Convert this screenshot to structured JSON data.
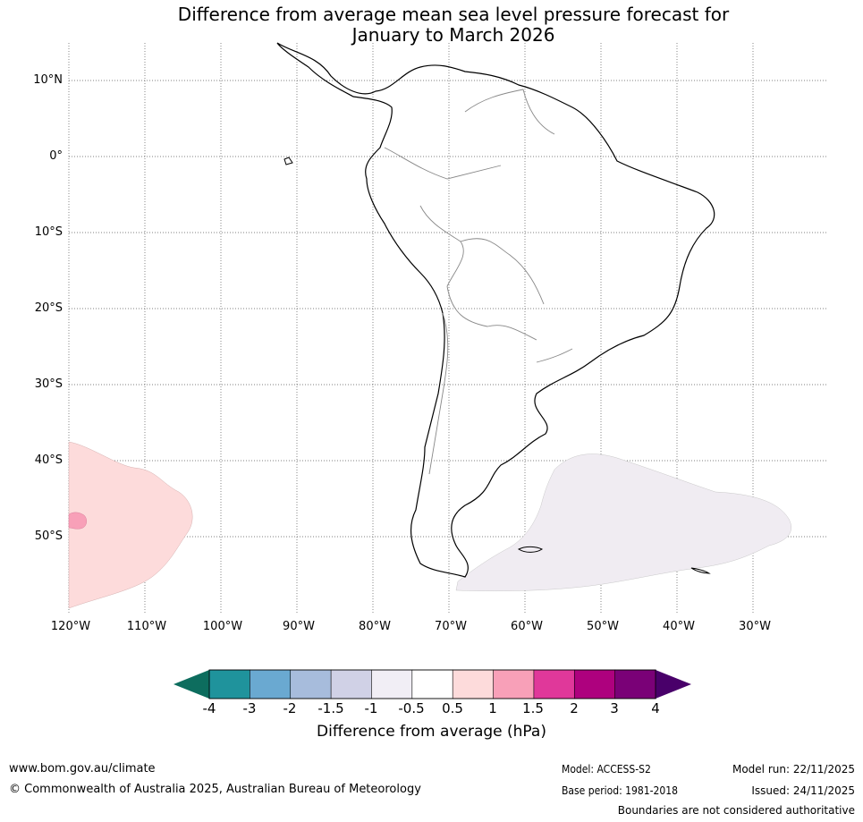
{
  "title": {
    "line1": "Difference from average mean sea level pressure forecast for",
    "line2": "January to March 2026"
  },
  "map": {
    "region": "South America",
    "lat_labels": [
      "10°N",
      "0°",
      "10°S",
      "20°S",
      "30°S",
      "40°S",
      "50°S"
    ],
    "lon_labels": [
      "120°W",
      "110°W",
      "100°W",
      "90°W",
      "80°W",
      "70°W",
      "60°W",
      "50°W",
      "40°W",
      "30°W"
    ],
    "anomaly_regions": [
      {
        "name": "south-east-pacific-positive",
        "category": "0.5 to 1",
        "color": "#fddbdb"
      },
      {
        "name": "south-east-pacific-core",
        "category": "1 to 1.5",
        "color": "#f8a0b8"
      },
      {
        "name": "south-atlantic-negative",
        "category": "-1 to -0.5",
        "color": "#f0ecf2"
      }
    ]
  },
  "colorbar": {
    "ticks": [
      "-4",
      "-3",
      "-2",
      "-1.5",
      "-1",
      "-0.5",
      "0.5",
      "1",
      "1.5",
      "2",
      "3",
      "4"
    ],
    "colors": [
      "#1f939c",
      "#6aa9d1",
      "#a7bcdc",
      "#d0d1e6",
      "#f1eef5",
      "#ffffff",
      "#fddbdb",
      "#f8a0b8",
      "#e0389a",
      "#ae017e",
      "#7a0177"
    ],
    "under_color": "#0d6d5e",
    "over_color": "#49006a",
    "label": "Difference from average (hPa)"
  },
  "footer": {
    "url": "www.bom.gov.au/climate",
    "copyright": "© Commonwealth of Australia 2025, Australian Bureau of Meteorology",
    "model": "Model: ACCESS-S2",
    "base_period": "Base period: 1981-2018",
    "model_run": "Model run: 22/11/2025",
    "issued": "Issued: 24/11/2025",
    "disclaimer": "Boundaries are not considered authoritative"
  }
}
